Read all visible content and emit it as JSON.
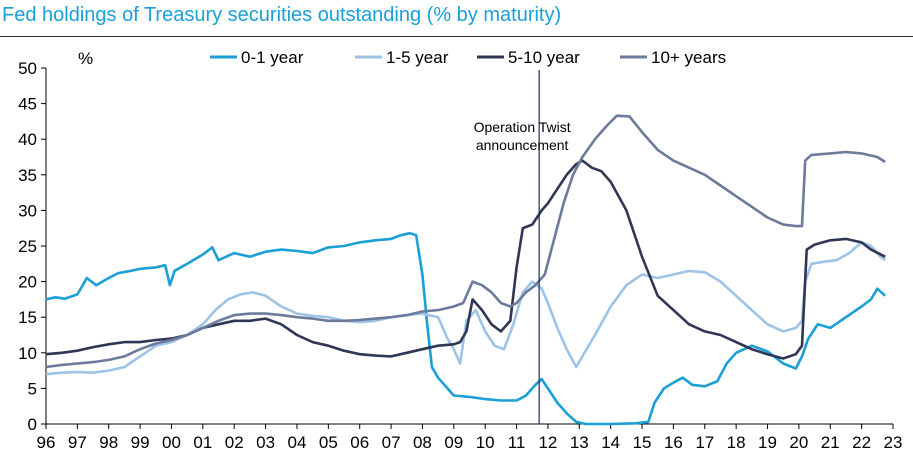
{
  "chart_data": {
    "type": "line",
    "title": "Fed holdings of Treasury securities outstanding (% by maturity)",
    "ylabel": "%",
    "xlabel": "",
    "ylim": [
      0,
      50
    ],
    "xlim": [
      1996,
      2023
    ],
    "y_ticks": [
      0,
      5,
      10,
      15,
      20,
      25,
      30,
      35,
      40,
      45,
      50
    ],
    "x_tick_labels": [
      "96",
      "97",
      "98",
      "99",
      "00",
      "01",
      "02",
      "03",
      "04",
      "05",
      "06",
      "07",
      "08",
      "09",
      "10",
      "11",
      "12",
      "13",
      "14",
      "15",
      "16",
      "17",
      "18",
      "19",
      "20",
      "21",
      "22",
      "23"
    ],
    "grid": false,
    "legend": "top",
    "annotations": [
      {
        "text_lines": [
          "Operation Twist",
          "announcement"
        ],
        "x": 2011.72
      }
    ],
    "series": [
      {
        "name": "0-1 year",
        "color": "#1a9fd6",
        "points": [
          [
            1996,
            17.5
          ],
          [
            1996.3,
            17.8
          ],
          [
            1996.6,
            17.6
          ],
          [
            1997,
            18.2
          ],
          [
            1997.3,
            20.5
          ],
          [
            1997.6,
            19.5
          ],
          [
            1998,
            20.5
          ],
          [
            1998.3,
            21.2
          ],
          [
            1998.7,
            21.5
          ],
          [
            1999,
            21.8
          ],
          [
            1999.5,
            22.0
          ],
          [
            1999.8,
            22.3
          ],
          [
            1999.95,
            19.5
          ],
          [
            2000.1,
            21.5
          ],
          [
            2000.5,
            22.5
          ],
          [
            2001,
            23.8
          ],
          [
            2001.3,
            24.8
          ],
          [
            2001.5,
            23.0
          ],
          [
            2002,
            24.0
          ],
          [
            2002.5,
            23.5
          ],
          [
            2003,
            24.2
          ],
          [
            2003.5,
            24.5
          ],
          [
            2004,
            24.3
          ],
          [
            2004.5,
            24.0
          ],
          [
            2005,
            24.8
          ],
          [
            2005.5,
            25.0
          ],
          [
            2006,
            25.5
          ],
          [
            2006.5,
            25.8
          ],
          [
            2007,
            26.0
          ],
          [
            2007.3,
            26.5
          ],
          [
            2007.6,
            26.8
          ],
          [
            2007.8,
            26.5
          ],
          [
            2008,
            21.0
          ],
          [
            2008.15,
            14.0
          ],
          [
            2008.3,
            8.0
          ],
          [
            2008.5,
            6.5
          ],
          [
            2008.8,
            5.0
          ],
          [
            2009,
            4.0
          ],
          [
            2009.5,
            3.8
          ],
          [
            2010,
            3.5
          ],
          [
            2010.5,
            3.3
          ],
          [
            2011,
            3.3
          ],
          [
            2011.3,
            4.0
          ],
          [
            2011.6,
            5.5
          ],
          [
            2011.8,
            6.3
          ],
          [
            2012,
            5.0
          ],
          [
            2012.3,
            3.0
          ],
          [
            2012.6,
            1.5
          ],
          [
            2012.9,
            0.3
          ],
          [
            2013.2,
            0.0
          ],
          [
            2014,
            0.0
          ],
          [
            2014.8,
            0.1
          ],
          [
            2015.2,
            0.3
          ],
          [
            2015.4,
            3.0
          ],
          [
            2015.7,
            5.0
          ],
          [
            2016,
            5.8
          ],
          [
            2016.3,
            6.5
          ],
          [
            2016.6,
            5.5
          ],
          [
            2017,
            5.3
          ],
          [
            2017.4,
            6.0
          ],
          [
            2017.7,
            8.5
          ],
          [
            2018,
            10.0
          ],
          [
            2018.5,
            11.0
          ],
          [
            2019,
            10.2
          ],
          [
            2019.5,
            8.5
          ],
          [
            2019.9,
            7.8
          ],
          [
            2020.1,
            9.5
          ],
          [
            2020.3,
            12.0
          ],
          [
            2020.6,
            14.0
          ],
          [
            2021,
            13.5
          ],
          [
            2021.5,
            15.0
          ],
          [
            2022,
            16.5
          ],
          [
            2022.3,
            17.5
          ],
          [
            2022.5,
            19.0
          ],
          [
            2022.75,
            18.0
          ]
        ]
      },
      {
        "name": "1-5 year",
        "color": "#9dc3e6",
        "points": [
          [
            1996,
            7.0
          ],
          [
            1996.5,
            7.2
          ],
          [
            1997,
            7.3
          ],
          [
            1997.5,
            7.2
          ],
          [
            1998,
            7.5
          ],
          [
            1998.5,
            8.0
          ],
          [
            1999,
            9.5
          ],
          [
            1999.5,
            11.0
          ],
          [
            2000,
            11.5
          ],
          [
            2000.5,
            12.5
          ],
          [
            2001,
            14.0
          ],
          [
            2001.4,
            16.0
          ],
          [
            2001.8,
            17.5
          ],
          [
            2002.2,
            18.2
          ],
          [
            2002.6,
            18.5
          ],
          [
            2003,
            18.0
          ],
          [
            2003.5,
            16.5
          ],
          [
            2004,
            15.5
          ],
          [
            2004.5,
            15.2
          ],
          [
            2005,
            15.0
          ],
          [
            2005.5,
            14.5
          ],
          [
            2006,
            14.3
          ],
          [
            2006.5,
            14.5
          ],
          [
            2007,
            15.0
          ],
          [
            2007.5,
            15.3
          ],
          [
            2008,
            15.5
          ],
          [
            2008.5,
            15.0
          ],
          [
            2008.8,
            12.0
          ],
          [
            2009,
            10.5
          ],
          [
            2009.2,
            8.5
          ],
          [
            2009.4,
            14.5
          ],
          [
            2009.7,
            16.0
          ],
          [
            2010,
            13.0
          ],
          [
            2010.3,
            11.0
          ],
          [
            2010.6,
            10.5
          ],
          [
            2010.9,
            14.0
          ],
          [
            2011.2,
            18.5
          ],
          [
            2011.5,
            20.0
          ],
          [
            2011.8,
            19.0
          ],
          [
            2012,
            17.0
          ],
          [
            2012.3,
            13.5
          ],
          [
            2012.6,
            10.5
          ],
          [
            2012.9,
            8.0
          ],
          [
            2013.1,
            9.5
          ],
          [
            2013.5,
            12.5
          ],
          [
            2014,
            16.5
          ],
          [
            2014.5,
            19.5
          ],
          [
            2015,
            21.0
          ],
          [
            2015.5,
            20.5
          ],
          [
            2016,
            21.0
          ],
          [
            2016.5,
            21.5
          ],
          [
            2017,
            21.3
          ],
          [
            2017.5,
            20.0
          ],
          [
            2018,
            18.0
          ],
          [
            2018.5,
            16.0
          ],
          [
            2019,
            14.0
          ],
          [
            2019.5,
            13.0
          ],
          [
            2019.9,
            13.5
          ],
          [
            2020.1,
            14.5
          ],
          [
            2020.2,
            20.0
          ],
          [
            2020.4,
            22.5
          ],
          [
            2020.8,
            22.8
          ],
          [
            2021.2,
            23.0
          ],
          [
            2021.6,
            24.0
          ],
          [
            2022,
            25.5
          ],
          [
            2022.3,
            25.0
          ],
          [
            2022.6,
            23.5
          ],
          [
            2022.75,
            23.0
          ]
        ]
      },
      {
        "name": "5-10 year",
        "color": "#2f3656",
        "points": [
          [
            1996,
            9.8
          ],
          [
            1996.5,
            10.0
          ],
          [
            1997,
            10.3
          ],
          [
            1997.5,
            10.8
          ],
          [
            1998,
            11.2
          ],
          [
            1998.5,
            11.5
          ],
          [
            1999,
            11.5
          ],
          [
            1999.5,
            11.8
          ],
          [
            2000,
            12.0
          ],
          [
            2000.5,
            12.5
          ],
          [
            2001,
            13.5
          ],
          [
            2001.5,
            14.0
          ],
          [
            2002,
            14.5
          ],
          [
            2002.5,
            14.5
          ],
          [
            2003,
            14.8
          ],
          [
            2003.5,
            14.0
          ],
          [
            2004,
            12.5
          ],
          [
            2004.5,
            11.5
          ],
          [
            2005,
            11.0
          ],
          [
            2005.5,
            10.3
          ],
          [
            2006,
            9.8
          ],
          [
            2006.5,
            9.6
          ],
          [
            2007,
            9.5
          ],
          [
            2007.5,
            10.0
          ],
          [
            2008,
            10.5
          ],
          [
            2008.5,
            11.0
          ],
          [
            2009,
            11.2
          ],
          [
            2009.2,
            11.5
          ],
          [
            2009.4,
            13.0
          ],
          [
            2009.6,
            17.5
          ],
          [
            2009.9,
            16.0
          ],
          [
            2010.2,
            14.0
          ],
          [
            2010.5,
            13.0
          ],
          [
            2010.8,
            14.5
          ],
          [
            2011,
            22.0
          ],
          [
            2011.2,
            27.5
          ],
          [
            2011.5,
            28.0
          ],
          [
            2011.8,
            30.0
          ],
          [
            2012,
            31.0
          ],
          [
            2012.3,
            33.0
          ],
          [
            2012.6,
            35.0
          ],
          [
            2012.9,
            36.5
          ],
          [
            2013.1,
            37.0
          ],
          [
            2013.4,
            36.0
          ],
          [
            2013.7,
            35.5
          ],
          [
            2014,
            34.0
          ],
          [
            2014.5,
            30.0
          ],
          [
            2015,
            23.5
          ],
          [
            2015.5,
            18.0
          ],
          [
            2016,
            16.0
          ],
          [
            2016.5,
            14.0
          ],
          [
            2017,
            13.0
          ],
          [
            2017.5,
            12.5
          ],
          [
            2018,
            11.5
          ],
          [
            2018.5,
            10.5
          ],
          [
            2019,
            9.8
          ],
          [
            2019.5,
            9.2
          ],
          [
            2019.9,
            9.8
          ],
          [
            2020.1,
            11.0
          ],
          [
            2020.25,
            24.5
          ],
          [
            2020.5,
            25.2
          ],
          [
            2021,
            25.8
          ],
          [
            2021.5,
            26.0
          ],
          [
            2022,
            25.5
          ],
          [
            2022.3,
            24.5
          ],
          [
            2022.75,
            23.5
          ]
        ]
      },
      {
        "name": "10+ years",
        "color": "#6c7a9c",
        "points": [
          [
            1996,
            8.0
          ],
          [
            1996.5,
            8.3
          ],
          [
            1997,
            8.5
          ],
          [
            1997.5,
            8.7
          ],
          [
            1998,
            9.0
          ],
          [
            1998.5,
            9.5
          ],
          [
            1999,
            10.5
          ],
          [
            1999.5,
            11.3
          ],
          [
            2000,
            11.8
          ],
          [
            2000.5,
            12.5
          ],
          [
            2001,
            13.5
          ],
          [
            2001.5,
            14.5
          ],
          [
            2002,
            15.3
          ],
          [
            2002.5,
            15.5
          ],
          [
            2003,
            15.5
          ],
          [
            2003.5,
            15.3
          ],
          [
            2004,
            15.0
          ],
          [
            2004.5,
            14.8
          ],
          [
            2005,
            14.5
          ],
          [
            2005.5,
            14.5
          ],
          [
            2006,
            14.6
          ],
          [
            2006.5,
            14.8
          ],
          [
            2007,
            15.0
          ],
          [
            2007.5,
            15.3
          ],
          [
            2008,
            15.8
          ],
          [
            2008.5,
            16.0
          ],
          [
            2009,
            16.5
          ],
          [
            2009.3,
            17.0
          ],
          [
            2009.6,
            20.0
          ],
          [
            2009.9,
            19.5
          ],
          [
            2010.2,
            18.5
          ],
          [
            2010.5,
            17.0
          ],
          [
            2010.8,
            16.5
          ],
          [
            2011,
            17.0
          ],
          [
            2011.3,
            18.5
          ],
          [
            2011.6,
            19.5
          ],
          [
            2011.9,
            21.0
          ],
          [
            2012.2,
            26.0
          ],
          [
            2012.5,
            31.0
          ],
          [
            2012.8,
            35.0
          ],
          [
            2013.1,
            37.5
          ],
          [
            2013.5,
            40.0
          ],
          [
            2013.9,
            42.0
          ],
          [
            2014.2,
            43.3
          ],
          [
            2014.6,
            43.2
          ],
          [
            2015,
            41.0
          ],
          [
            2015.5,
            38.5
          ],
          [
            2016,
            37.0
          ],
          [
            2016.5,
            36.0
          ],
          [
            2017,
            35.0
          ],
          [
            2017.5,
            33.5
          ],
          [
            2018,
            32.0
          ],
          [
            2018.5,
            30.5
          ],
          [
            2019,
            29.0
          ],
          [
            2019.5,
            28.0
          ],
          [
            2019.9,
            27.8
          ],
          [
            2020.1,
            27.8
          ],
          [
            2020.2,
            37.0
          ],
          [
            2020.4,
            37.8
          ],
          [
            2021,
            38.0
          ],
          [
            2021.5,
            38.2
          ],
          [
            2022,
            38.0
          ],
          [
            2022.5,
            37.5
          ],
          [
            2022.75,
            36.8
          ]
        ]
      }
    ]
  }
}
